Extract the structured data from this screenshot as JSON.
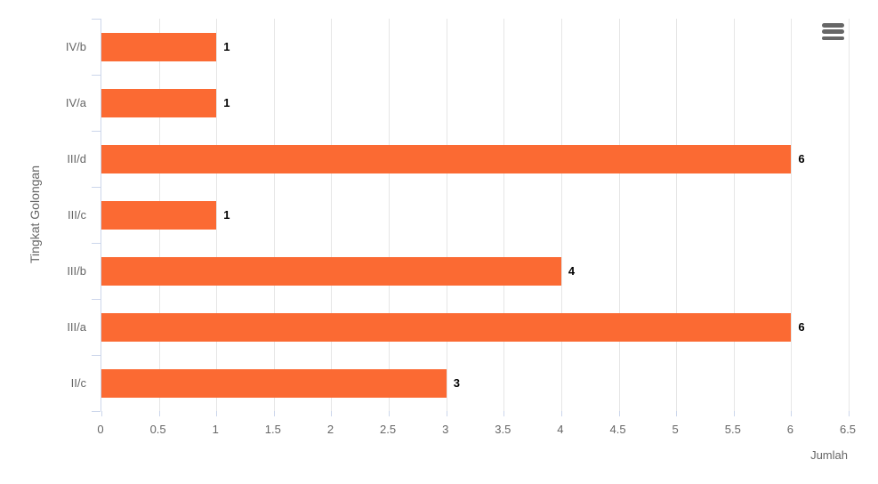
{
  "chart_data": {
    "type": "bar",
    "orientation": "horizontal",
    "title": "",
    "categories": [
      "IV/b",
      "IV/a",
      "III/d",
      "III/c",
      "III/b",
      "III/a",
      "II/c"
    ],
    "values": [
      1,
      1,
      6,
      1,
      4,
      6,
      3
    ],
    "xlabel": "Jumlah",
    "ylabel": "Tingkat Golongan",
    "xlim": [
      0,
      6.5
    ],
    "xticks": [
      0,
      0.5,
      1,
      1.5,
      2,
      2.5,
      3,
      3.5,
      4,
      4.5,
      5,
      5.5,
      6,
      6.5
    ],
    "grid": true,
    "legend": "none",
    "colors": {
      "bar": "#fb6a33",
      "gridline": "#e6e6e6",
      "axis_line": "#ccd6eb",
      "tick": "#ccd6eb",
      "label_text": "#666666",
      "data_label_text": "#000000",
      "menu_icon": "#666666",
      "background": "#ffffff"
    }
  },
  "toolbar": {
    "menu_icon": "hamburger-icon",
    "menu_tooltip": "Chart context menu"
  }
}
